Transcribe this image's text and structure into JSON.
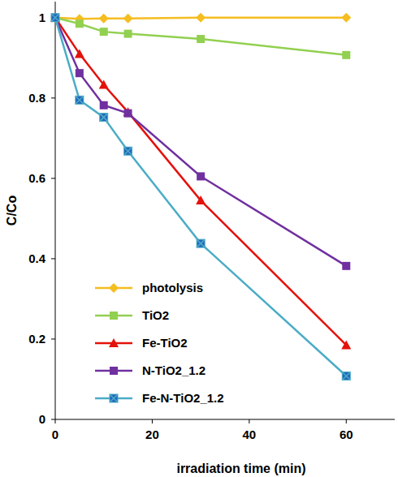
{
  "chart_data": {
    "type": "line",
    "x_label": "irradiation time (min)",
    "y_label": "C/Co",
    "x": [
      0,
      5,
      10,
      15,
      30,
      60
    ],
    "series": [
      {
        "name": "photolysis",
        "color": "#f5bd1f",
        "marker": "diamond",
        "values": [
          1,
          0.997,
          0.998,
          0.998,
          1.0,
          1.0
        ]
      },
      {
        "name": "TiO2",
        "color": "#92d050",
        "marker": "square",
        "values": [
          1,
          0.985,
          0.965,
          0.96,
          0.947,
          0.907
        ]
      },
      {
        "name": "Fe-TiO2",
        "color": "#e3120b",
        "marker": "triangle",
        "values": [
          1,
          0.91,
          0.833,
          0.765,
          0.545,
          0.185
        ]
      },
      {
        "name": "N-TiO2_1.2",
        "color": "#7030a0",
        "marker": "square",
        "values": [
          1,
          0.862,
          0.782,
          0.762,
          0.605,
          0.382
        ]
      },
      {
        "name": "Fe-N-TiO2_1.2",
        "color": "#4bacc6",
        "marker": "square-x",
        "values": [
          1,
          0.795,
          0.752,
          0.668,
          0.438,
          0.108
        ]
      }
    ],
    "xlim": [
      0,
      70
    ],
    "xticks": [
      0,
      20,
      40,
      60
    ],
    "ylim": [
      0,
      1.04
    ],
    "yticks": [
      0,
      0.2,
      0.4,
      0.6,
      0.8,
      1
    ],
    "grid": false,
    "legend": "lower left"
  }
}
